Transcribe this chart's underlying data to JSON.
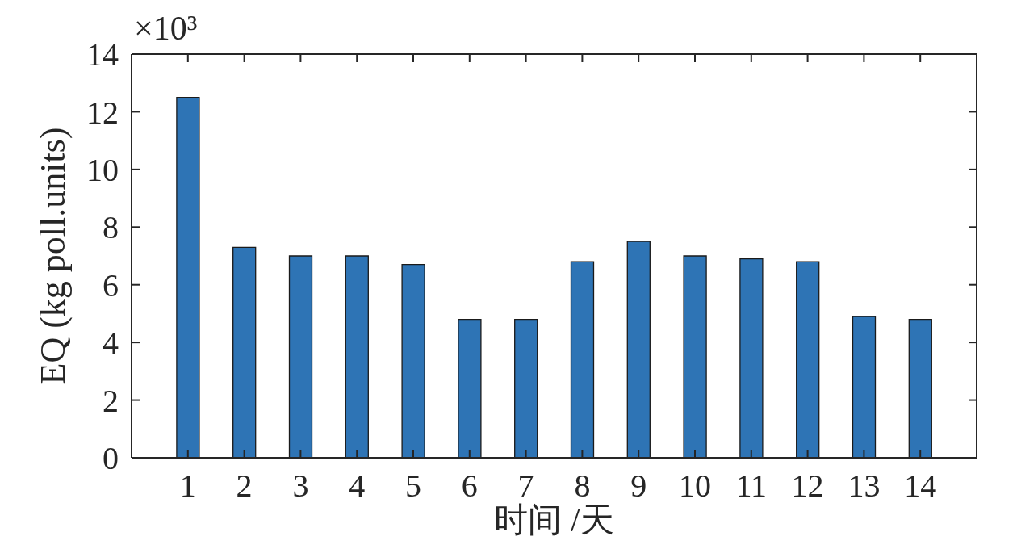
{
  "chart_data": {
    "type": "bar",
    "x": [
      1,
      2,
      3,
      4,
      5,
      6,
      7,
      8,
      9,
      10,
      11,
      12,
      13,
      14
    ],
    "values": [
      12.5,
      7.3,
      7.0,
      7.0,
      6.7,
      4.8,
      4.8,
      6.8,
      7.5,
      7.0,
      6.9,
      6.8,
      4.9,
      4.8
    ],
    "color": "#2e74b5",
    "xlim": [
      0,
      15
    ],
    "xticks": [
      1,
      2,
      3,
      4,
      5,
      6,
      7,
      8,
      9,
      10,
      11,
      12,
      13,
      14
    ],
    "ylim": [
      0,
      14
    ],
    "yticks": [
      0,
      2,
      4,
      6,
      8,
      10,
      12,
      14
    ],
    "xlabel": "时间 /天",
    "ylabel": "EQ (kg poll.units)",
    "annotations": [
      "×10³"
    ]
  }
}
